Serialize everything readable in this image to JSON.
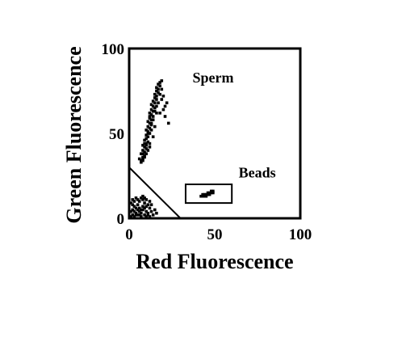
{
  "chart_data": {
    "type": "scatter",
    "title": "",
    "xlabel": "Red Fluorescence",
    "ylabel": "Green Fluorescence",
    "xlim": [
      0,
      100
    ],
    "ylim": [
      0,
      100
    ],
    "xticks": [
      "0",
      "50",
      "100"
    ],
    "yticks": [
      "0",
      "50",
      "100"
    ],
    "grid": false,
    "annotations": [
      {
        "text": "Sperm",
        "x": 37,
        "y": 80
      },
      {
        "text": "Beads",
        "x": 64,
        "y": 24
      }
    ],
    "gate_line": {
      "x": [
        0,
        30
      ],
      "y": [
        30,
        0
      ]
    },
    "gate_box": {
      "x": [
        33,
        60
      ],
      "y": [
        9,
        20
      ]
    },
    "series": [
      {
        "points": [
          [
            7,
            34
          ],
          [
            8,
            35
          ],
          [
            8,
            36
          ],
          [
            9,
            37
          ],
          [
            7,
            38
          ],
          [
            9,
            39
          ],
          [
            8,
            40
          ],
          [
            10,
            41
          ],
          [
            9,
            42
          ],
          [
            8,
            43
          ],
          [
            10,
            44
          ],
          [
            11,
            45
          ],
          [
            9,
            46
          ],
          [
            10,
            47
          ],
          [
            11,
            48
          ],
          [
            10,
            49
          ],
          [
            12,
            50
          ],
          [
            11,
            51
          ],
          [
            10,
            52
          ],
          [
            12,
            53
          ],
          [
            11,
            54
          ],
          [
            13,
            55
          ],
          [
            12,
            56
          ],
          [
            11,
            57
          ],
          [
            13,
            58
          ],
          [
            12,
            59
          ],
          [
            14,
            60
          ],
          [
            13,
            61
          ],
          [
            12,
            62
          ],
          [
            14,
            63
          ],
          [
            13,
            64
          ],
          [
            15,
            65
          ],
          [
            14,
            66
          ],
          [
            13,
            67
          ],
          [
            15,
            68
          ],
          [
            14,
            69
          ],
          [
            16,
            70
          ],
          [
            15,
            71
          ],
          [
            16,
            72
          ],
          [
            15,
            73
          ],
          [
            17,
            74
          ],
          [
            16,
            75
          ],
          [
            17,
            76
          ],
          [
            16,
            77
          ],
          [
            18,
            78
          ],
          [
            17,
            79
          ],
          [
            18,
            80
          ],
          [
            19,
            81
          ],
          [
            20,
            72
          ],
          [
            19,
            70
          ],
          [
            22,
            68
          ],
          [
            21,
            60
          ],
          [
            23,
            56
          ],
          [
            18,
            62
          ],
          [
            9,
            36
          ],
          [
            10,
            38
          ],
          [
            12,
            44
          ],
          [
            13,
            52
          ],
          [
            14,
            58
          ],
          [
            8,
            34
          ],
          [
            7,
            33
          ],
          [
            6,
            35
          ],
          [
            11,
            40
          ],
          [
            12,
            42
          ],
          [
            9,
            44
          ],
          [
            14,
            48
          ],
          [
            15,
            54
          ],
          [
            16,
            62
          ],
          [
            17,
            68
          ],
          [
            12,
            60
          ],
          [
            8,
            38
          ],
          [
            10,
            43
          ],
          [
            11,
            50
          ],
          [
            13,
            56
          ],
          [
            15,
            63
          ],
          [
            16,
            66
          ],
          [
            18,
            73
          ],
          [
            19,
            76
          ],
          [
            20,
            64
          ],
          [
            21,
            66
          ]
        ]
      },
      {
        "points": [
          [
            1,
            1
          ],
          [
            2,
            2
          ],
          [
            3,
            1
          ],
          [
            4,
            3
          ],
          [
            5,
            2
          ],
          [
            6,
            4
          ],
          [
            7,
            3
          ],
          [
            8,
            5
          ],
          [
            9,
            2
          ],
          [
            10,
            4
          ],
          [
            11,
            3
          ],
          [
            12,
            6
          ],
          [
            2,
            5
          ],
          [
            3,
            7
          ],
          [
            5,
            8
          ],
          [
            6,
            10
          ],
          [
            7,
            12
          ],
          [
            8,
            11
          ],
          [
            9,
            9
          ],
          [
            10,
            7
          ],
          [
            11,
            8
          ],
          [
            12,
            10
          ],
          [
            4,
            6
          ],
          [
            6,
            6
          ],
          [
            7,
            5
          ],
          [
            1,
            4
          ],
          [
            2,
            8
          ],
          [
            3,
            10
          ],
          [
            4,
            12
          ],
          [
            5,
            11
          ],
          [
            8,
            13
          ],
          [
            9,
            12
          ],
          [
            10,
            11
          ],
          [
            13,
            4
          ],
          [
            14,
            2
          ],
          [
            15,
            5
          ],
          [
            16,
            3
          ],
          [
            13,
            8
          ],
          [
            1,
            9
          ],
          [
            2,
            11
          ],
          [
            6,
            2
          ],
          [
            7,
            1
          ],
          [
            8,
            7
          ],
          [
            9,
            6
          ],
          [
            10,
            1
          ],
          [
            11,
            2
          ],
          [
            12,
            1
          ],
          [
            3,
            4
          ],
          [
            4,
            2
          ],
          [
            5,
            5
          ]
        ]
      },
      {
        "points": [
          [
            42,
            13
          ],
          [
            43,
            14
          ],
          [
            44,
            13
          ],
          [
            45,
            14
          ],
          [
            46,
            15
          ],
          [
            47,
            14
          ],
          [
            48,
            15
          ],
          [
            49,
            16
          ],
          [
            47,
            15
          ],
          [
            45,
            13
          ],
          [
            44,
            14
          ],
          [
            48,
            16
          ],
          [
            46,
            14
          ],
          [
            43,
            13
          ],
          [
            49,
            15
          ]
        ]
      }
    ]
  }
}
